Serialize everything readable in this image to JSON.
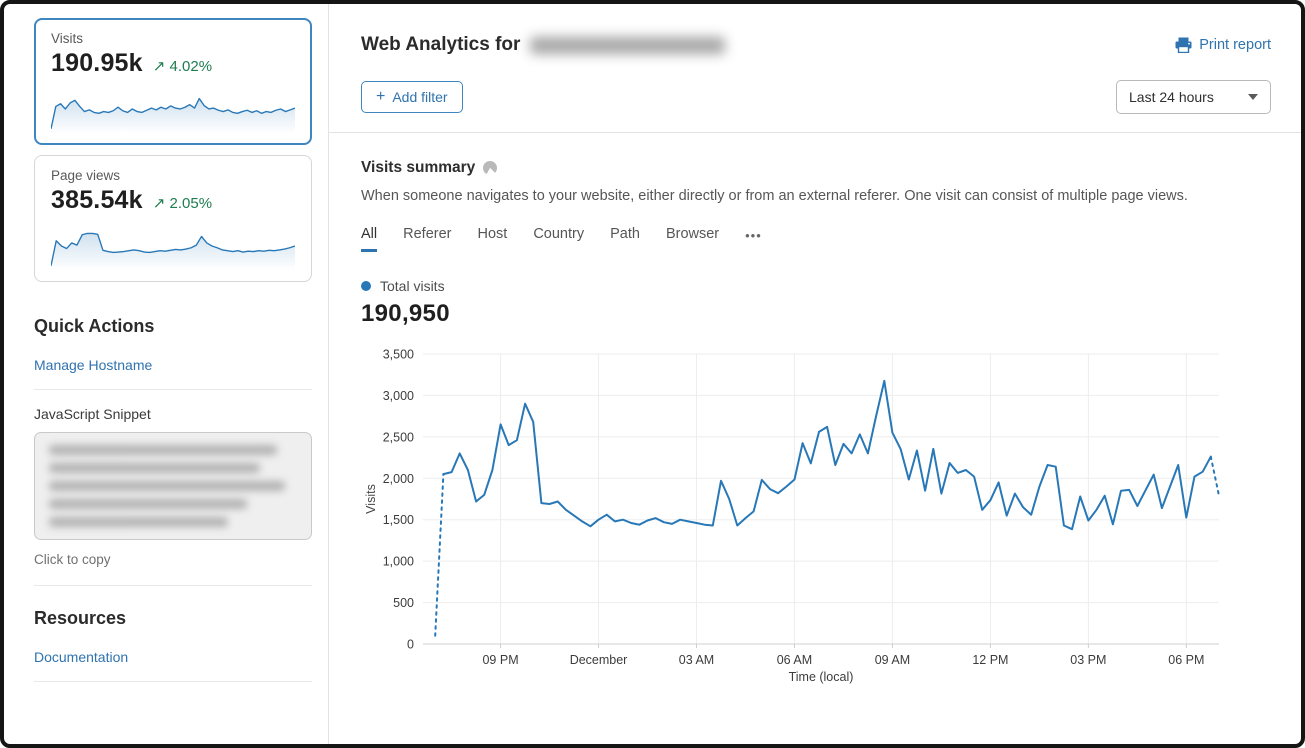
{
  "colors": {
    "accent_blue": "#2f73af",
    "chart_line": "#2878b8",
    "positive_green": "#1e7d4f",
    "selected_card_border": "#3e86c0",
    "grid": "#ededed",
    "axis": "#cfcfcf"
  },
  "sidebar": {
    "metric_cards": [
      {
        "label": "Visits",
        "value": "190.95k",
        "trend_arrow": "↗",
        "delta": "4.02%",
        "selected": true,
        "sparkline": [
          4,
          56,
          62,
          50,
          64,
          70,
          56,
          44,
          48,
          42,
          40,
          44,
          42,
          46,
          54,
          46,
          42,
          50,
          44,
          42,
          47,
          52,
          48,
          54,
          50,
          57,
          52,
          50,
          54,
          60,
          52,
          74,
          58,
          50,
          52,
          47,
          44,
          48,
          42,
          40,
          44,
          47,
          42,
          46,
          40,
          44,
          42,
          47,
          50,
          44,
          48,
          52
        ]
      },
      {
        "label": "Page views",
        "value": "385.54k",
        "trend_arrow": "↗",
        "delta": "2.05%",
        "selected": false,
        "sparkline": [
          4,
          62,
          50,
          44,
          57,
          52,
          76,
          79,
          79,
          77,
          40,
          37,
          35,
          36,
          37,
          39,
          41,
          39,
          36,
          35,
          37,
          39,
          38,
          40,
          42,
          41,
          43,
          46,
          52,
          72,
          57,
          50,
          46,
          41,
          39,
          37,
          39,
          36,
          38,
          37,
          39,
          38,
          40,
          39,
          41,
          43,
          46,
          50
        ]
      }
    ],
    "quick_actions": {
      "title": "Quick Actions",
      "manage_hostname_label": "Manage Hostname",
      "snippet_label": "JavaScript Snippet",
      "snippet_hint": "Click to copy"
    },
    "resources": {
      "title": "Resources",
      "documentation_label": "Documentation"
    }
  },
  "header": {
    "title": "Web Analytics for",
    "print_report_label": "Print report"
  },
  "toolbar": {
    "add_filter_icon": "+",
    "add_filter_label": "Add filter",
    "time_range_value": "Last 24 hours"
  },
  "summary": {
    "title": "Visits summary",
    "description": "When someone navigates to your website, either directly or from an external referer. One visit can consist of multiple page views.",
    "tabs": [
      {
        "label": "All",
        "active": true
      },
      {
        "label": "Referer",
        "active": false
      },
      {
        "label": "Host",
        "active": false
      },
      {
        "label": "Country",
        "active": false
      },
      {
        "label": "Path",
        "active": false
      },
      {
        "label": "Browser",
        "active": false
      }
    ],
    "more_tabs_label": "•••"
  },
  "legend": {
    "label": "Total visits"
  },
  "total_visits_value": "190,950",
  "chart_data": {
    "type": "line",
    "title": "Total visits",
    "xlabel": "Time (local)",
    "ylabel": "Visits",
    "ylim": [
      0,
      3500
    ],
    "y_ticks": [
      0,
      500,
      1000,
      1500,
      2000,
      2500,
      3000,
      3500
    ],
    "grid": true,
    "legend_position": "top-left",
    "interval_minutes": 15,
    "start_time": "7:00 PM",
    "end_time": "7:00 PM (next day)",
    "x_tick_labels": [
      "09 PM",
      "December",
      "03 AM",
      "06 AM",
      "09 AM",
      "12 PM",
      "03 PM",
      "06 PM"
    ],
    "x_tick_indices": [
      8,
      20,
      32,
      44,
      56,
      68,
      80,
      92
    ],
    "series": [
      {
        "name": "Total visits",
        "color": "#2878b8",
        "dashed_head_points": 1,
        "dashed_tail_points": 1,
        "values": [
          100,
          2050,
          2075,
          2300,
          2100,
          1720,
          1800,
          2100,
          2650,
          2400,
          2460,
          2900,
          2680,
          1700,
          1690,
          1720,
          1620,
          1550,
          1480,
          1420,
          1500,
          1560,
          1480,
          1500,
          1460,
          1440,
          1490,
          1520,
          1470,
          1450,
          1500,
          1480,
          1460,
          1440,
          1430,
          1970,
          1750,
          1430,
          1520,
          1600,
          1980,
          1870,
          1820,
          1900,
          1985,
          2425,
          2180,
          2560,
          2620,
          2160,
          2415,
          2300,
          2530,
          2300,
          2750,
          3175,
          2550,
          2355,
          1985,
          2335,
          1850,
          2355,
          1815,
          2185,
          2065,
          2100,
          2020,
          1620,
          1735,
          1950,
          1550,
          1815,
          1650,
          1560,
          1900,
          2160,
          2140,
          1430,
          1385,
          1780,
          1490,
          1620,
          1790,
          1445,
          1850,
          1860,
          1665,
          1855,
          2045,
          1640,
          1900,
          2160,
          1525,
          2020,
          2080,
          2260,
          1790
        ]
      }
    ]
  }
}
